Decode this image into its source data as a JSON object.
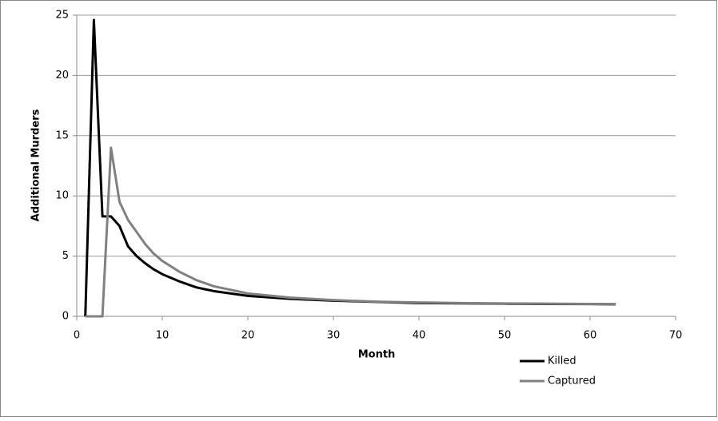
{
  "chart_data": {
    "type": "line",
    "xlabel": "Month",
    "ylabel": "Additional Murders",
    "x": [
      1,
      2,
      3,
      4,
      5,
      6,
      7,
      8,
      9,
      10,
      12,
      14,
      16,
      18,
      20,
      25,
      30,
      35,
      40,
      45,
      50,
      55,
      60,
      63
    ],
    "series": [
      {
        "name": "Killed",
        "color": "#000000",
        "values": [
          0,
          24.6,
          8.3,
          8.3,
          7.5,
          5.8,
          5.0,
          4.4,
          3.9,
          3.5,
          2.9,
          2.4,
          2.1,
          1.9,
          1.7,
          1.45,
          1.3,
          1.2,
          1.1,
          1.08,
          1.05,
          1.03,
          1.02,
          1.0
        ]
      },
      {
        "name": "Captured",
        "color": "#808080",
        "values": [
          0,
          0,
          0,
          14,
          9.5,
          8.0,
          7.0,
          6.0,
          5.2,
          4.6,
          3.7,
          3.0,
          2.5,
          2.2,
          1.9,
          1.55,
          1.35,
          1.22,
          1.15,
          1.1,
          1.07,
          1.05,
          1.03,
          1.02
        ]
      }
    ],
    "xlim": [
      0,
      70
    ],
    "xticks": [
      0,
      10,
      20,
      30,
      40,
      50,
      60,
      70
    ],
    "ylim": [
      0,
      25
    ],
    "yticks": [
      0,
      5,
      10,
      15,
      20,
      25
    ],
    "grid": true,
    "legend": "bottom-right"
  }
}
